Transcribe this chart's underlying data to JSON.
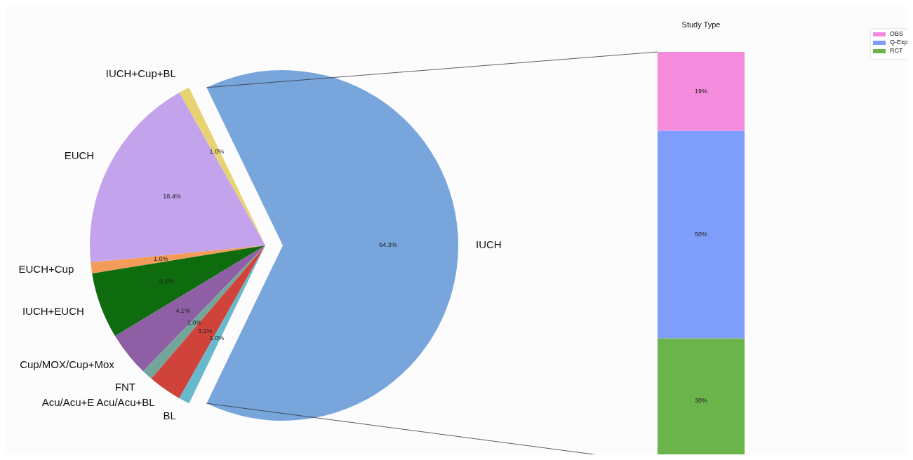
{
  "chart_data": [
    {
      "type": "pie",
      "categories": [
        "IUCH",
        "IUCH+Cup+BL",
        "EUCH",
        "EUCH+Cup",
        "IUCH+EUCH",
        "Cup/MOX/Cup+Mox",
        "FNT",
        "Acu/Acu+E Acu/Acu+BL",
        "BL"
      ],
      "values": [
        64.3,
        1.0,
        18.4,
        1.0,
        6.1,
        4.1,
        1.0,
        3.1,
        1.0
      ],
      "value_labels": [
        "64.3%",
        "1.0%",
        "18.4%",
        "1.0%",
        "6.1%",
        "4.1%",
        "1.0%",
        "3.1%",
        "1.0%"
      ],
      "colors": [
        "#77a5dc",
        "#e8d373",
        "#c4a3ed",
        "#f39c5a",
        "#0e6b0e",
        "#8f5fa6",
        "#73a69a",
        "#d0433b",
        "#67bacb"
      ]
    },
    {
      "type": "bar",
      "title": "Study Type",
      "stacked": true,
      "legend": "top right",
      "categories": [
        null
      ],
      "series": [
        {
          "name": "RCT",
          "color": "#6bb34b",
          "values": [
            30
          ],
          "value_labels": [
            "30%"
          ]
        },
        {
          "name": "Q-Exp",
          "color": "#7f9efc",
          "values": [
            50
          ],
          "value_labels": [
            "50%"
          ]
        },
        {
          "name": "OBS",
          "color": "#f58bdc",
          "values": [
            19
          ],
          "value_labels": [
            "19%"
          ]
        }
      ]
    }
  ]
}
